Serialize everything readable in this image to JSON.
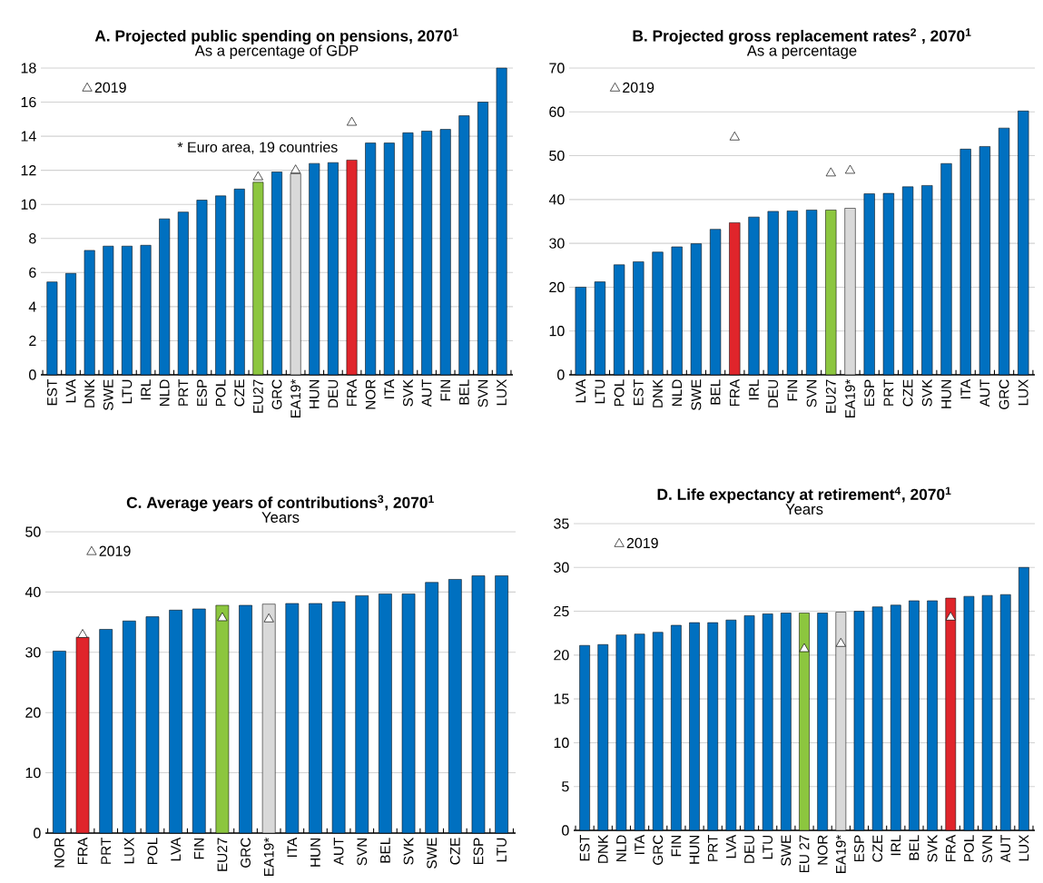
{
  "chart_data": [
    {
      "type": "bar",
      "title": "A. Projected public spending on pensions, 2070$^{1}$",
      "subtitle": "As a percentage of GDP",
      "categories": [
        "EST",
        "LVA",
        "DNK",
        "SWE",
        "LTU",
        "IRL",
        "NLD",
        "PRT",
        "ESP",
        "POL",
        "CZE",
        "EU27",
        "GRC",
        "EA19*",
        "HUN",
        "DEU",
        "FRA",
        "NOR",
        "ITA",
        "SVK",
        "AUT",
        "FIN",
        "BEL",
        "SVN",
        "LUX"
      ],
      "series": [
        {
          "colors": [
            "#0070c0",
            "#0070c0",
            "#0070c0",
            "#0070c0",
            "#0070c0",
            "#0070c0",
            "#0070c0",
            "#0070c0",
            "#0070c0",
            "#0070c0",
            "#0070c0",
            "#8cc63f",
            "#0070c0",
            "#d9d9d9",
            "#0070c0",
            "#0070c0",
            "#e0252b",
            "#0070c0",
            "#0070c0",
            "#0070c0",
            "#0070c0",
            "#0070c0",
            "#0070c0",
            "#0070c0",
            "#0070c0"
          ],
          "values": [
            5.45,
            5.95,
            7.3,
            7.55,
            7.55,
            7.6,
            9.15,
            9.55,
            10.25,
            10.5,
            10.9,
            11.3,
            11.9,
            11.8,
            12.4,
            12.45,
            12.6,
            13.6,
            13.6,
            14.2,
            14.3,
            14.4,
            15.2,
            16.0,
            18.0
          ]
        },
        {
          "type": "scatter",
          "name": "2019",
          "marker": "triangle",
          "color": "#ffffff",
          "values": [
            null,
            null,
            null,
            null,
            null,
            null,
            null,
            null,
            null,
            null,
            null,
            11.6,
            null,
            12.0,
            null,
            null,
            14.8,
            null,
            null,
            null,
            null,
            null,
            null,
            null,
            null
          ]
        }
      ],
      "ylim": [
        0,
        18
      ],
      "yticks": [
        0,
        2,
        4,
        6,
        8,
        10,
        12,
        14,
        16,
        18
      ],
      "grid": "y",
      "legend": "top left",
      "annotations": [
        "* Euro area, 19 countries"
      ]
    },
    {
      "type": "bar",
      "title": "B. Projected gross replacement rates$^{2}$ , 2070$^{1}$",
      "subtitle": "As a percentage",
      "categories": [
        "LVA",
        "LTU",
        "POL",
        "EST",
        "DNK",
        "NLD",
        "SWE",
        "BEL",
        "FRA",
        "IRL",
        "DEU",
        "FIN",
        "SVN",
        "EU27",
        "EA19*",
        "ESP",
        "PRT",
        "CZE",
        "SVK",
        "HUN",
        "ITA",
        "AUT",
        "GRC",
        "LUX"
      ],
      "series": [
        {
          "colors": [
            "#0070c0",
            "#0070c0",
            "#0070c0",
            "#0070c0",
            "#0070c0",
            "#0070c0",
            "#0070c0",
            "#0070c0",
            "#e0252b",
            "#0070c0",
            "#0070c0",
            "#0070c0",
            "#0070c0",
            "#8cc63f",
            "#d9d9d9",
            "#0070c0",
            "#0070c0",
            "#0070c0",
            "#0070c0",
            "#0070c0",
            "#0070c0",
            "#0070c0",
            "#0070c0",
            "#0070c0"
          ],
          "values": [
            20.0,
            21.2,
            25.1,
            25.8,
            28.0,
            29.2,
            29.9,
            33.2,
            34.7,
            36.0,
            37.3,
            37.4,
            37.6,
            37.6,
            38.0,
            41.3,
            41.4,
            42.9,
            43.2,
            48.2,
            51.5,
            52.1,
            56.3,
            60.2
          ]
        },
        {
          "type": "scatter",
          "name": "2019",
          "marker": "triangle",
          "color": "#ffffff",
          "values": [
            null,
            null,
            null,
            null,
            null,
            null,
            null,
            null,
            54.2,
            null,
            null,
            null,
            null,
            46.0,
            46.6,
            null,
            null,
            null,
            null,
            null,
            null,
            null,
            null,
            null
          ]
        }
      ],
      "ylim": [
        0,
        70
      ],
      "yticks": [
        0,
        10,
        20,
        30,
        40,
        50,
        60,
        70
      ],
      "grid": "y",
      "legend": "top left"
    },
    {
      "type": "bar",
      "title": "C. Average years of contributions$^{3}$, 2070$^{1}$",
      "subtitle": "Years",
      "categories": [
        "NOR",
        "FRA",
        "PRT",
        "LUX",
        "POL",
        "LVA",
        "FIN",
        "EU27",
        "GRC",
        "EA19*",
        "ITA",
        "HUN",
        "AUT",
        "SVN",
        "BEL",
        "SVK",
        "SWE",
        "CZE",
        "ESP",
        "LTU"
      ],
      "series": [
        {
          "colors": [
            "#0070c0",
            "#e0252b",
            "#0070c0",
            "#0070c0",
            "#0070c0",
            "#0070c0",
            "#0070c0",
            "#8cc63f",
            "#0070c0",
            "#d9d9d9",
            "#0070c0",
            "#0070c0",
            "#0070c0",
            "#0070c0",
            "#0070c0",
            "#0070c0",
            "#0070c0",
            "#0070c0",
            "#0070c0",
            "#0070c0"
          ],
          "values": [
            30.2,
            32.5,
            33.8,
            35.2,
            35.9,
            37.0,
            37.2,
            37.8,
            37.8,
            38.0,
            38.1,
            38.1,
            38.4,
            39.4,
            39.7,
            39.7,
            41.6,
            42.1,
            42.7,
            42.7
          ]
        },
        {
          "type": "scatter",
          "name": "2019",
          "marker": "triangle",
          "color": "#ffffff",
          "values": [
            null,
            32.9,
            null,
            null,
            null,
            null,
            null,
            35.7,
            null,
            35.5,
            null,
            null,
            null,
            null,
            null,
            null,
            null,
            null,
            null,
            null
          ]
        }
      ],
      "ylim": [
        0,
        50
      ],
      "yticks": [
        0,
        10,
        20,
        30,
        40,
        50
      ],
      "grid": "y",
      "legend": "top left"
    },
    {
      "type": "bar",
      "title": "D. Life expectancy at retirement$^{4}$, 2070$^{1}$",
      "subtitle": "Years",
      "categories": [
        "EST",
        "DNK",
        "NLD",
        "ITA",
        "GRC",
        "FIN",
        "HUN",
        "PRT",
        "LVA",
        "DEU",
        "LTU",
        "SWE",
        "EU 27",
        "NOR",
        "EA19*",
        "ESP",
        "CZE",
        "IRL",
        "BEL",
        "SVK",
        "FRA",
        "POL",
        "SVN",
        "AUT",
        "LUX"
      ],
      "series": [
        {
          "colors": [
            "#0070c0",
            "#0070c0",
            "#0070c0",
            "#0070c0",
            "#0070c0",
            "#0070c0",
            "#0070c0",
            "#0070c0",
            "#0070c0",
            "#0070c0",
            "#0070c0",
            "#0070c0",
            "#8cc63f",
            "#0070c0",
            "#d9d9d9",
            "#0070c0",
            "#0070c0",
            "#0070c0",
            "#0070c0",
            "#0070c0",
            "#e0252b",
            "#0070c0",
            "#0070c0",
            "#0070c0",
            "#0070c0"
          ],
          "values": [
            21.1,
            21.2,
            22.3,
            22.4,
            22.6,
            23.4,
            23.7,
            23.7,
            24.0,
            24.5,
            24.7,
            24.8,
            24.8,
            24.8,
            24.9,
            25.0,
            25.5,
            25.7,
            26.2,
            26.2,
            26.5,
            26.7,
            26.8,
            26.9,
            30.0
          ]
        },
        {
          "type": "scatter",
          "name": "2019",
          "marker": "triangle",
          "color": "#ffffff",
          "values": [
            null,
            null,
            null,
            null,
            null,
            null,
            null,
            null,
            null,
            null,
            null,
            null,
            20.7,
            null,
            21.3,
            null,
            null,
            null,
            null,
            null,
            24.3,
            null,
            null,
            null,
            null
          ]
        }
      ],
      "ylim": [
        0,
        35
      ],
      "yticks": [
        0,
        5,
        10,
        15,
        20,
        25,
        30,
        35
      ],
      "grid": "y",
      "legend": "top left"
    }
  ]
}
